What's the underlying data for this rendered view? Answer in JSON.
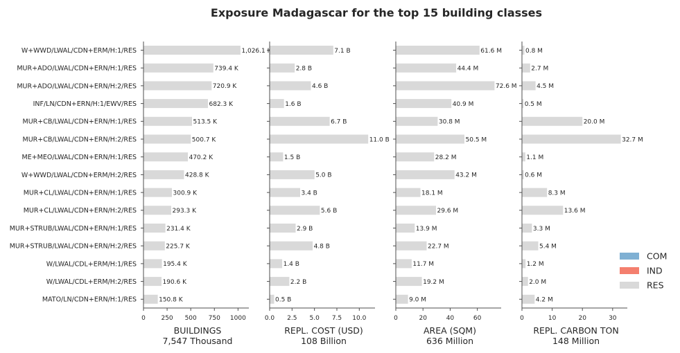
{
  "chart_data": {
    "type": "bar",
    "orientation": "horizontal",
    "title": "Exposure Madagascar for the top 15 building classes",
    "categories": [
      "W+WWD/LWAL/CDN+ERM/H:1/RES",
      "MUR+ADO/LWAL/CDN+ERN/H:1/RES",
      "MUR+ADO/LWAL/CDN+ERN/H:2/RES",
      "INF/LN/CDN+ERN/H:1/EWV/RES",
      "MUR+CB/LWAL/CDN+ERN/H:1/RES",
      "MUR+CB/LWAL/CDN+ERN/H:2/RES",
      "ME+MEO/LWAL/CDN+ERN/H:1/RES",
      "W+WWD/LWAL/CDN+ERM/H:2/RES",
      "MUR+CL/LWAL/CDN+ERN/H:1/RES",
      "MUR+CL/LWAL/CDN+ERN/H:2/RES",
      "MUR+STRUB/LWAL/CDN+ERN/H:1/RES",
      "MUR+STRUB/LWAL/CDN+ERN/H:2/RES",
      "W/LWAL/CDL+ERM/H:1/RES",
      "W/LWAL/CDL+ERM/H:2/RES",
      "MATO/LN/CDN+ERN/H:1/RES"
    ],
    "panels": [
      {
        "xlabel": "BUILDINGS",
        "subtitle": "7,547 Thousand",
        "xlim": [
          0,
          1100
        ],
        "ticks": [
          0,
          250,
          500,
          750,
          1000
        ],
        "tick_labels": [
          "0",
          "250",
          "500",
          "750",
          "1000"
        ],
        "values": [
          1026.1,
          739.4,
          720.9,
          682.3,
          513.5,
          500.7,
          470.2,
          428.8,
          300.9,
          293.3,
          231.4,
          225.7,
          195.4,
          190.6,
          150.8
        ],
        "labels": [
          "1,026.1 K",
          "739.4 K",
          "720.9 K",
          "682.3 K",
          "513.5 K",
          "500.7 K",
          "470.2 K",
          "428.8 K",
          "300.9 K",
          "293.3 K",
          "231.4 K",
          "225.7 K",
          "195.4 K",
          "190.6 K",
          "150.8 K"
        ]
      },
      {
        "xlabel": "REPL. COST (USD)",
        "subtitle": "108 Billion",
        "xlim": [
          0,
          11.6
        ],
        "ticks": [
          0,
          2.5,
          5,
          7.5,
          10
        ],
        "tick_labels": [
          "0.0",
          "2.5",
          "5.0",
          "7.5",
          "10.0"
        ],
        "values": [
          7.1,
          2.8,
          4.6,
          1.6,
          6.7,
          11.0,
          1.5,
          5.0,
          3.4,
          5.6,
          2.9,
          4.8,
          1.4,
          2.2,
          0.5
        ],
        "labels": [
          "7.1 B",
          "2.8 B",
          "4.6 B",
          "1.6 B",
          "6.7 B",
          "11.0 B",
          "1.5 B",
          "5.0 B",
          "3.4 B",
          "5.6 B",
          "2.9 B",
          "4.8 B",
          "1.4 B",
          "2.2 B",
          "0.5 B"
        ]
      },
      {
        "xlabel": "AREA (SQM)",
        "subtitle": "636 Million",
        "xlim": [
          0,
          76.5
        ],
        "ticks": [
          0,
          20,
          40,
          60
        ],
        "tick_labels": [
          "0",
          "20",
          "40",
          "60"
        ],
        "values": [
          61.6,
          44.4,
          72.6,
          40.9,
          30.8,
          50.5,
          28.2,
          43.2,
          18.1,
          29.6,
          13.9,
          22.7,
          11.7,
          19.2,
          9.0
        ],
        "labels": [
          "61.6 M",
          "44.4 M",
          "72.6 M",
          "40.9 M",
          "30.8 M",
          "50.5 M",
          "28.2 M",
          "43.2 M",
          "18.1 M",
          "29.6 M",
          "13.9 M",
          "22.7 M",
          "11.7 M",
          "19.2 M",
          "9.0 M"
        ]
      },
      {
        "xlabel": "REPL. CARBON TON",
        "subtitle": "148 Million",
        "xlim": [
          0,
          34.4
        ],
        "ticks": [
          0,
          10,
          20,
          30
        ],
        "tick_labels": [
          "0",
          "10",
          "20",
          "30"
        ],
        "values": [
          0.8,
          2.7,
          4.5,
          0.5,
          20.0,
          32.7,
          1.1,
          0.6,
          8.3,
          13.6,
          3.3,
          5.4,
          1.2,
          2.0,
          4.2
        ],
        "labels": [
          "0.8 M",
          "2.7 M",
          "4.5 M",
          "0.5 M",
          "20.0 M",
          "32.7 M",
          "1.1 M",
          "0.6 M",
          "8.3 M",
          "13.6 M",
          "3.3 M",
          "5.4 M",
          "1.2 M",
          "2.0 M",
          "4.2 M"
        ]
      }
    ],
    "legend": {
      "position": "bottom-right",
      "items": [
        {
          "name": "COM",
          "color": "#7fb0d3"
        },
        {
          "name": "IND",
          "color": "#f47f6e"
        },
        {
          "name": "RES",
          "color": "#d9d9d9"
        }
      ]
    },
    "bar_color": "#d9d9d9",
    "grid": false
  }
}
